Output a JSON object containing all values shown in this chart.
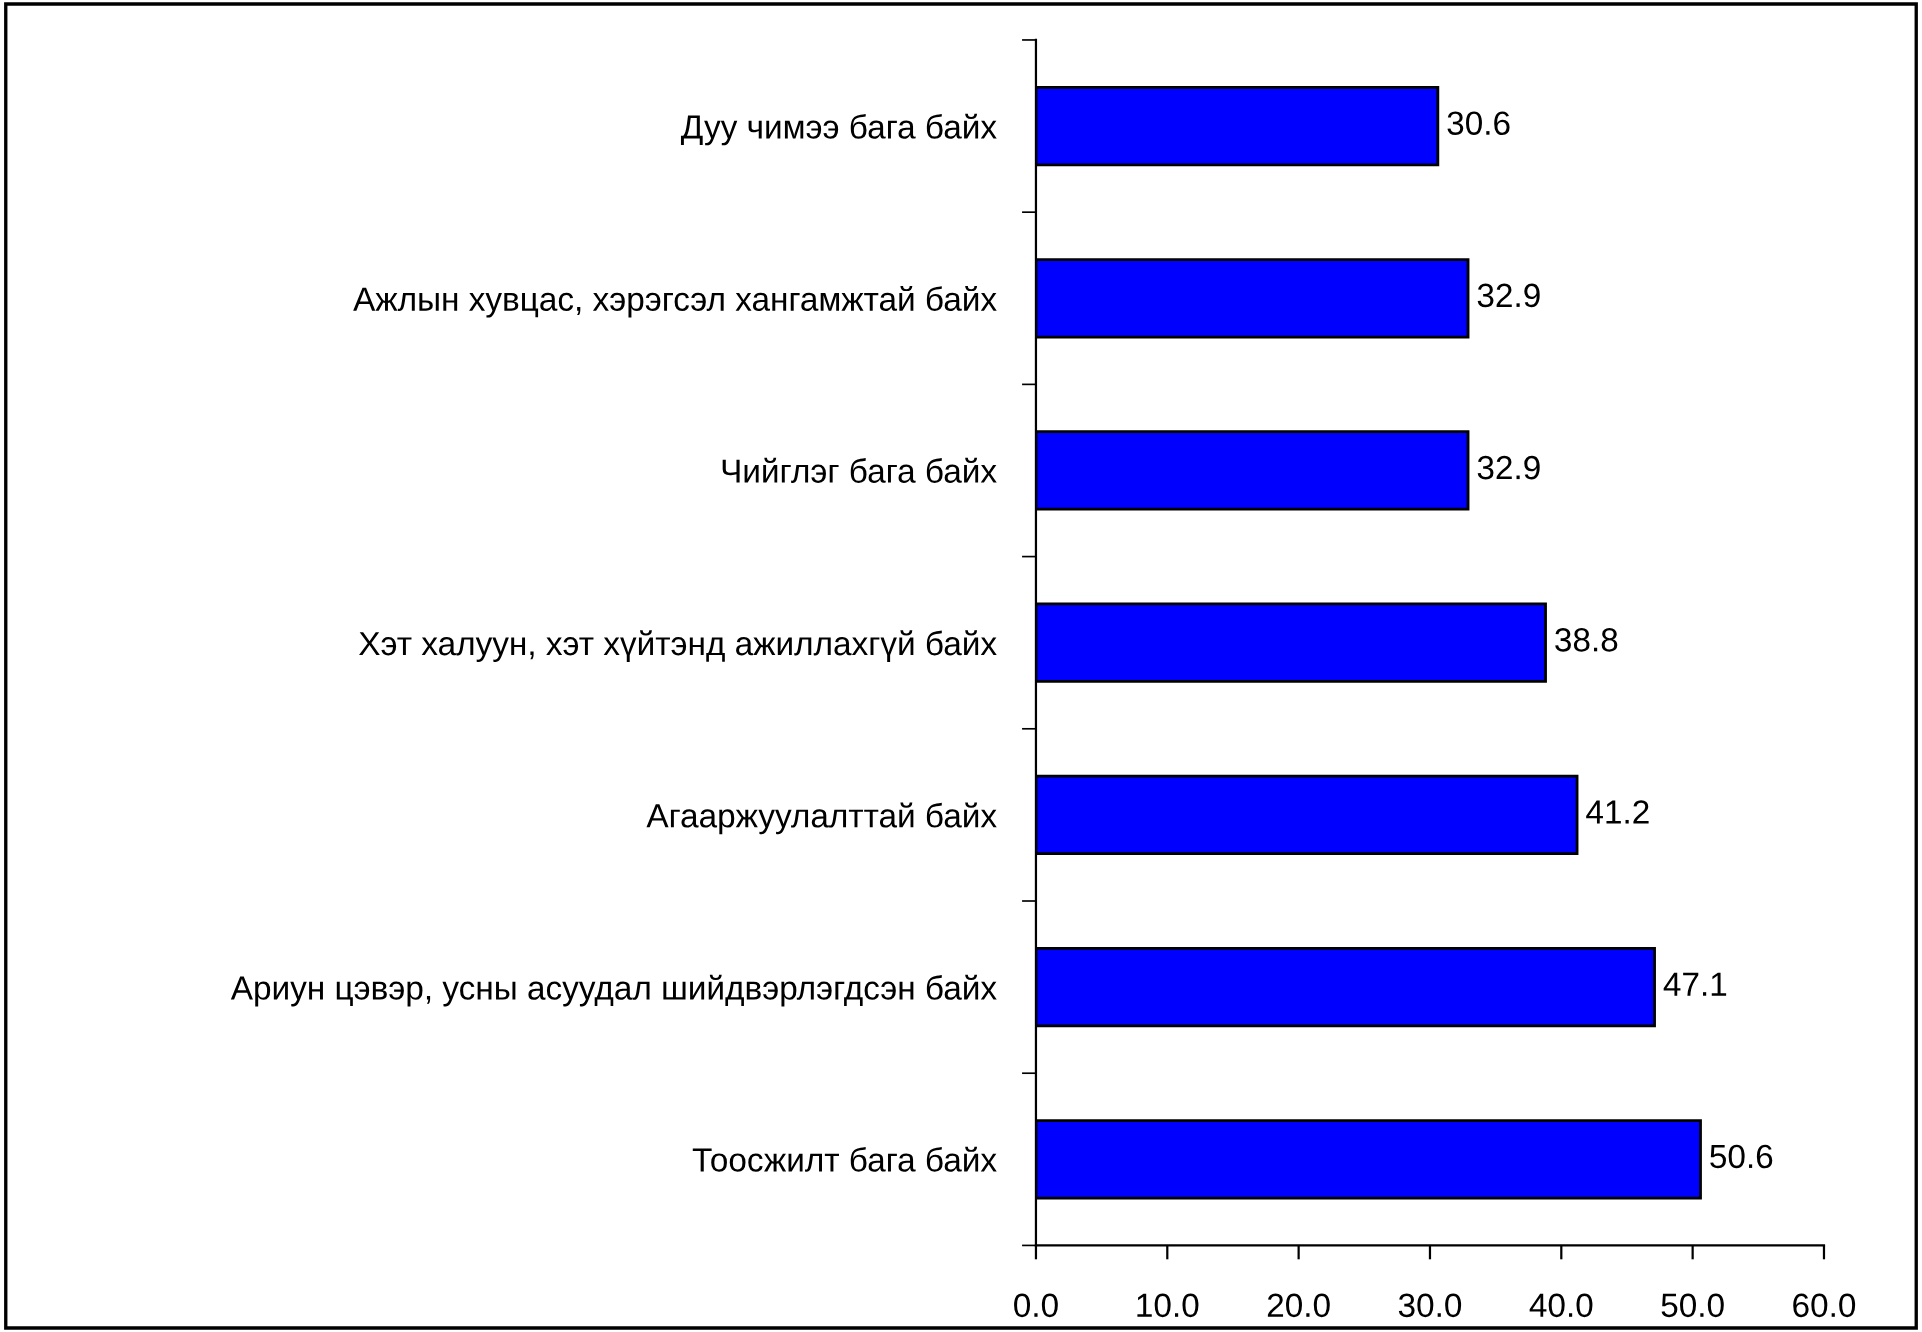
{
  "chart_data": {
    "type": "bar",
    "orientation": "horizontal",
    "categories": [
      "Дуу чимээ бага байх",
      "Ажлын хувцас, хэрэгсэл хангамжтай байх",
      "Чийглэг бага байх",
      "Хэт халуун, хэт хүйтэнд ажиллахгүй байх",
      "Агааржуулалттай байх",
      "Ариун цэвэр, усны асуудал шийдвэрлэгдсэн байх",
      "Тоосжилт бага байх"
    ],
    "values": [
      30.6,
      32.9,
      32.9,
      38.8,
      41.2,
      47.1,
      50.6
    ],
    "color": "#0000ff",
    "data_labels": true,
    "xlim": [
      0,
      60
    ],
    "xticks": [
      {
        "value": 0,
        "label": "0.0"
      },
      {
        "value": 10,
        "label": "10.0"
      },
      {
        "value": 20,
        "label": "20.0"
      },
      {
        "value": 30,
        "label": "30.0"
      },
      {
        "value": 40,
        "label": "40.0"
      },
      {
        "value": 50,
        "label": "50.0"
      },
      {
        "value": 60,
        "label": "60.0"
      }
    ],
    "grid": false,
    "legend": false
  }
}
